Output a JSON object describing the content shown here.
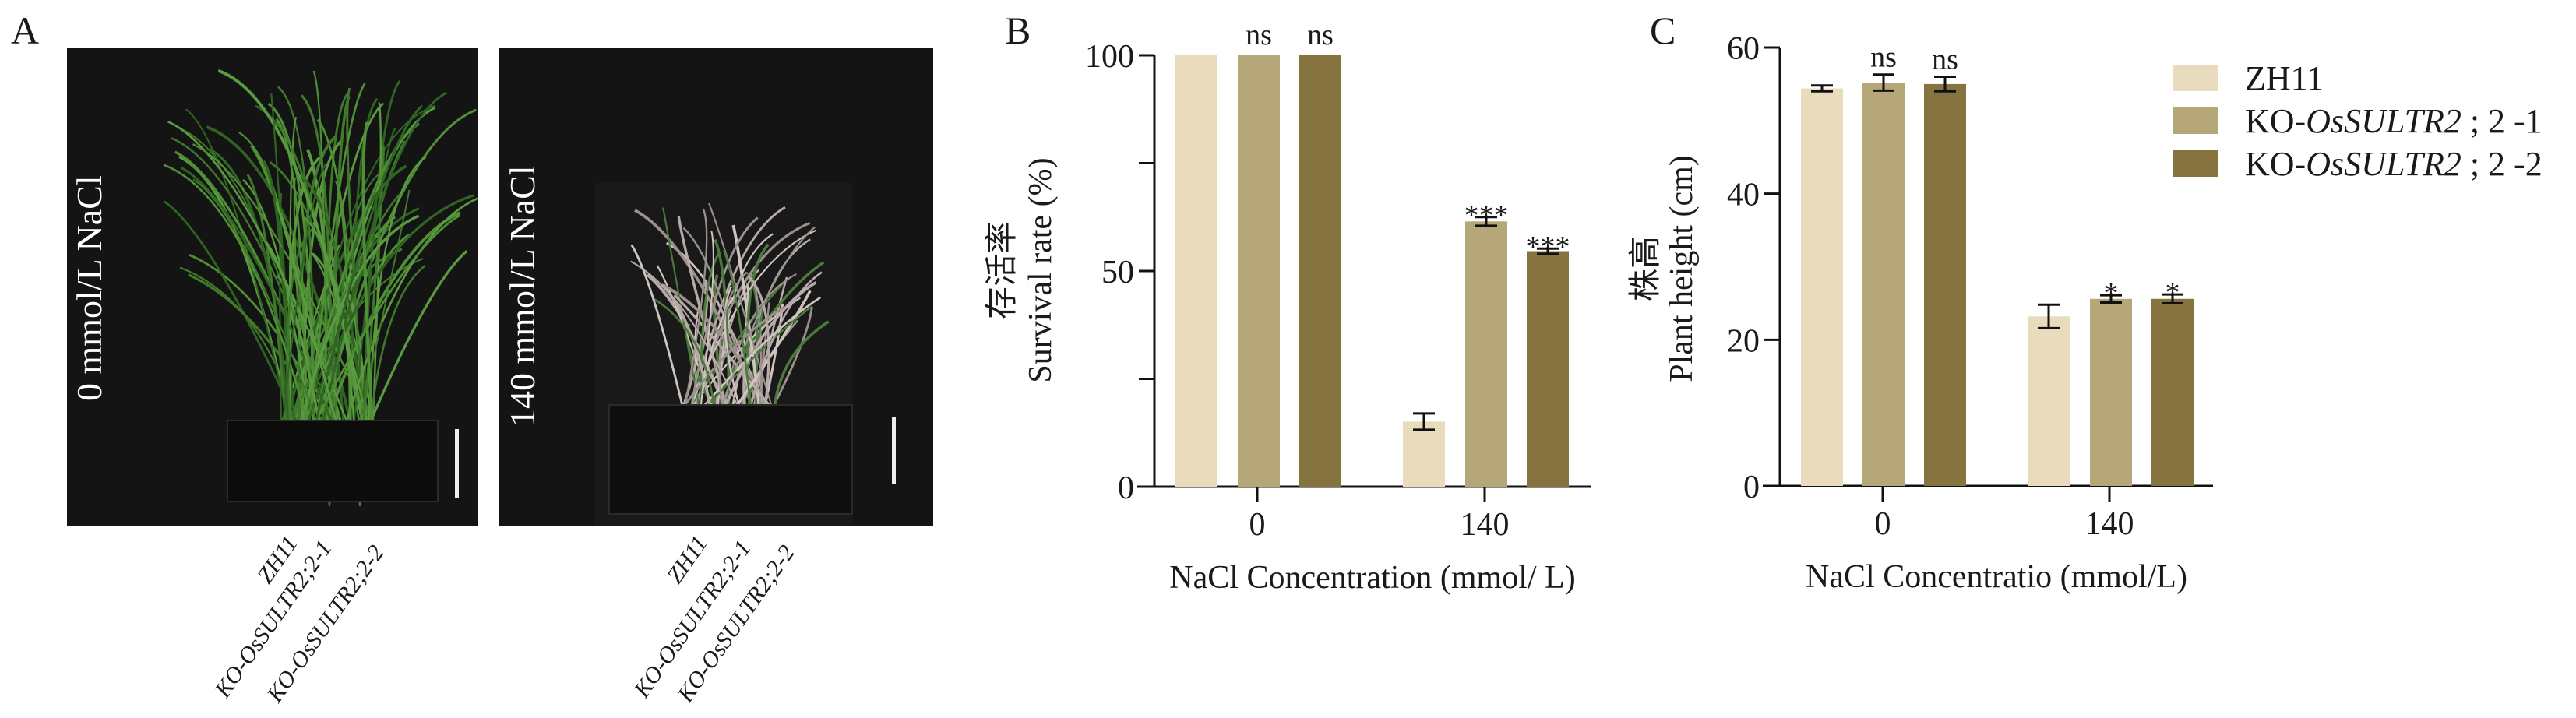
{
  "panels": {
    "a": "A",
    "b": "B",
    "c": "C"
  },
  "photos": [
    {
      "condition": "0 mmol/L  NaCl",
      "genotypes": [
        "ZH11",
        "KO-OsSULTR2;2-1",
        "KO-OsSULTR2;2-2"
      ]
    },
    {
      "condition": "140 mmol/L  NaCl",
      "genotypes": [
        "ZH11",
        "KO-OsSULTR2;2-1",
        "KO-OsSULTR2;2-2"
      ]
    }
  ],
  "colors": {
    "ZH11": "#e9dcbc",
    "KO1": "#b6a779",
    "KO2": "#85743f",
    "photo_bg": "#141414"
  },
  "legend": [
    {
      "prefix": "ZH11",
      "italic": "",
      "suffix": ""
    },
    {
      "prefix": "KO-",
      "italic": "OsSULTR2",
      "suffix": " ;  2 -1"
    },
    {
      "prefix": "KO-",
      "italic": "OsSULTR2",
      "suffix": " ;  2 -2"
    }
  ],
  "chart_data": [
    {
      "type": "bar",
      "title": "",
      "ylabel_cn": "存活率",
      "ylabel": "Survival rate (%)",
      "xlabel": "NaCl Concentration (mmol/ L)",
      "categories": [
        "0",
        "140"
      ],
      "ylim": [
        0,
        100
      ],
      "yticks": [
        0,
        25,
        50,
        75,
        100
      ],
      "ytick_labels": [
        "0",
        "",
        "50",
        "",
        "100"
      ],
      "series": [
        {
          "name": "ZH11",
          "values": [
            100,
            15.1
          ],
          "errors": [
            0,
            1.9
          ],
          "annotations": [
            "",
            ""
          ]
        },
        {
          "name": "KO-OsSULTR2;2-1",
          "values": [
            100,
            61.5
          ],
          "errors": [
            0,
            1.0
          ],
          "annotations": [
            "ns",
            "***"
          ]
        },
        {
          "name": "KO-OsSULTR2;2-2",
          "values": [
            100,
            54.6
          ],
          "errors": [
            0,
            0.6
          ],
          "annotations": [
            "ns",
            "***"
          ]
        }
      ]
    },
    {
      "type": "bar",
      "title": "",
      "ylabel_cn": "株高",
      "ylabel": "Plant height (cm)",
      "xlabel": "NaCl Concentratio (mmol/L)",
      "categories": [
        "0",
        "140"
      ],
      "ylim": [
        0,
        60
      ],
      "yticks": [
        0,
        20,
        40,
        60
      ],
      "ytick_labels": [
        "0",
        "20",
        "40",
        "60"
      ],
      "legend_position": "top-right",
      "series": [
        {
          "name": "ZH11",
          "values": [
            54.4,
            23.2
          ],
          "errors": [
            0.4,
            1.6
          ],
          "annotations": [
            "",
            ""
          ]
        },
        {
          "name": "KO-OsSULTR2;2-1",
          "values": [
            55.2,
            25.6
          ],
          "errors": [
            1.1,
            0.5
          ],
          "annotations": [
            "ns",
            "*"
          ]
        },
        {
          "name": "KO-OsSULTR2;2-2",
          "values": [
            55.0,
            25.6
          ],
          "errors": [
            1.0,
            0.6
          ],
          "annotations": [
            "ns",
            "*"
          ]
        }
      ]
    }
  ]
}
